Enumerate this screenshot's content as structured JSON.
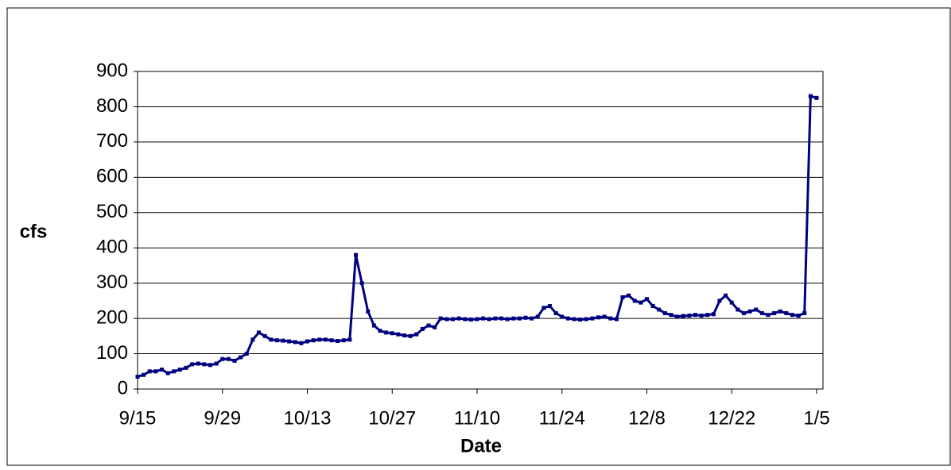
{
  "chart_data": {
    "type": "line",
    "y_label": "cfs",
    "x_label": "Date",
    "categories": [
      "9/15",
      null,
      null,
      null,
      null,
      null,
      null,
      null,
      null,
      null,
      null,
      null,
      null,
      null,
      "9/29",
      null,
      null,
      null,
      null,
      null,
      null,
      null,
      null,
      null,
      null,
      null,
      null,
      null,
      "10/13",
      null,
      null,
      null,
      null,
      null,
      null,
      null,
      null,
      null,
      null,
      null,
      null,
      null,
      "10/27",
      null,
      null,
      null,
      null,
      null,
      null,
      null,
      null,
      null,
      null,
      null,
      null,
      null,
      "11/10",
      null,
      null,
      null,
      null,
      null,
      null,
      null,
      null,
      null,
      null,
      null,
      null,
      null,
      "11/24",
      null,
      null,
      null,
      null,
      null,
      null,
      null,
      null,
      null,
      null,
      null,
      null,
      null,
      "12/8",
      null,
      null,
      null,
      null,
      null,
      null,
      null,
      null,
      null,
      null,
      null,
      null,
      null,
      "12/22",
      null,
      null,
      null,
      null,
      null,
      null,
      null,
      null,
      null,
      null,
      null,
      null,
      null,
      "1/5"
    ],
    "series": [
      {
        "name": "cfs",
        "color": "#000080",
        "values": [
          35,
          40,
          50,
          50,
          55,
          45,
          50,
          55,
          60,
          70,
          72,
          70,
          68,
          72,
          85,
          85,
          80,
          90,
          100,
          140,
          160,
          150,
          140,
          138,
          137,
          135,
          133,
          130,
          135,
          138,
          140,
          140,
          138,
          136,
          138,
          140,
          380,
          300,
          220,
          180,
          165,
          160,
          158,
          155,
          152,
          150,
          155,
          170,
          180,
          175,
          200,
          198,
          198,
          200,
          198,
          197,
          198,
          200,
          198,
          200,
          200,
          198,
          200,
          200,
          202,
          200,
          205,
          230,
          235,
          215,
          205,
          200,
          198,
          197,
          198,
          200,
          203,
          205,
          200,
          198,
          260,
          265,
          250,
          245,
          255,
          235,
          225,
          215,
          210,
          205,
          207,
          208,
          210,
          208,
          210,
          212,
          250,
          265,
          245,
          225,
          215,
          220,
          225,
          215,
          210,
          215,
          220,
          215,
          210,
          208,
          215,
          830,
          825
        ]
      }
    ],
    "ylim": [
      0,
      900
    ],
    "yticks": [
      0,
      100,
      200,
      300,
      400,
      500,
      600,
      700,
      800,
      900
    ],
    "grid": true
  }
}
